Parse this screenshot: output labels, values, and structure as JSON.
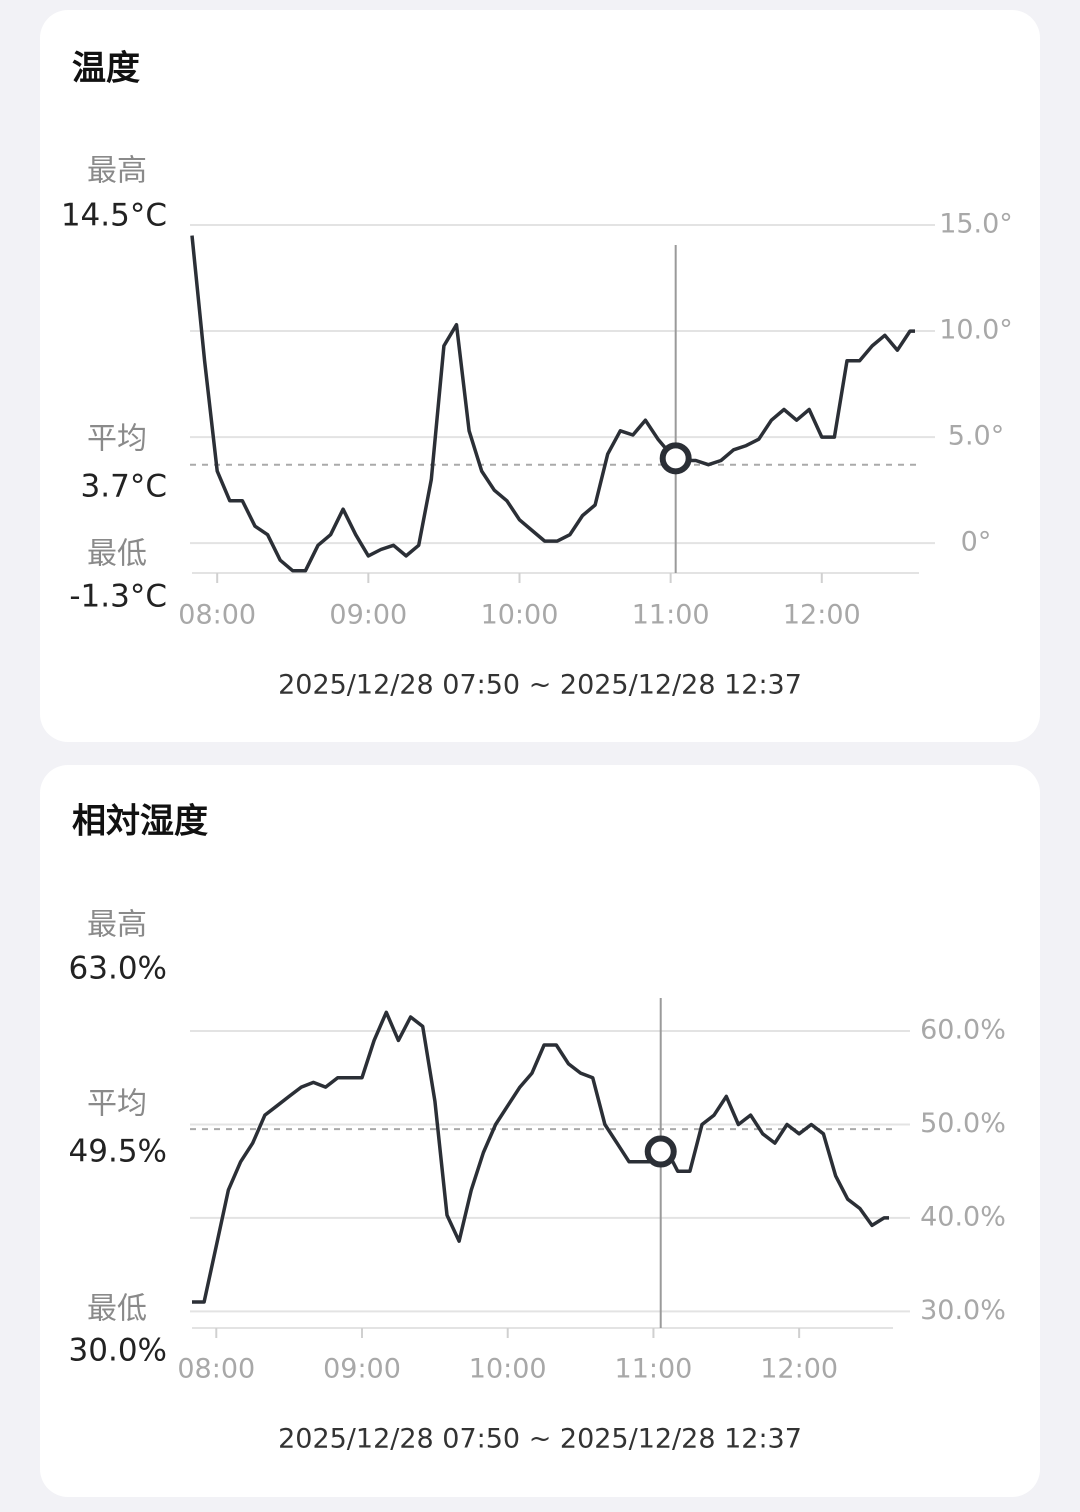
{
  "chart_data": [
    {
      "type": "line",
      "title": "温度",
      "stats": [
        {
          "label": "最高",
          "value": "14.5°C"
        },
        {
          "label": "平均",
          "value": "3.7°C"
        },
        {
          "label": "最低",
          "value": "-1.3°C"
        }
      ],
      "average_line": 3.7,
      "x": [
        "07:50",
        "07:55",
        "08:00",
        "08:05",
        "08:10",
        "08:15",
        "08:20",
        "08:25",
        "08:30",
        "08:35",
        "08:40",
        "08:45",
        "08:50",
        "08:55",
        "09:00",
        "09:05",
        "09:10",
        "09:15",
        "09:20",
        "09:25",
        "09:30",
        "09:35",
        "09:40",
        "09:45",
        "09:50",
        "09:55",
        "10:00",
        "10:05",
        "10:10",
        "10:15",
        "10:20",
        "10:25",
        "10:30",
        "10:35",
        "10:40",
        "10:45",
        "10:50",
        "10:55",
        "11:00",
        "11:05",
        "11:10",
        "11:15",
        "11:20",
        "11:25",
        "11:30",
        "11:35",
        "11:40",
        "11:45",
        "11:50",
        "11:55",
        "12:00",
        "12:05",
        "12:10",
        "12:15",
        "12:20",
        "12:25",
        "12:30",
        "12:35",
        "12:37"
      ],
      "series": [
        {
          "color": "#2b2f36",
          "values": [
            14.5,
            8.6,
            3.4,
            2.0,
            2.0,
            0.8,
            0.4,
            -0.8,
            -1.3,
            -1.3,
            -0.1,
            0.4,
            1.6,
            0.4,
            -0.6,
            -0.3,
            -0.1,
            -0.6,
            -0.1,
            3.0,
            9.3,
            10.3,
            5.3,
            3.4,
            2.5,
            2.0,
            1.1,
            0.6,
            0.1,
            0.1,
            0.4,
            1.3,
            1.8,
            4.2,
            5.3,
            5.1,
            5.8,
            4.9,
            4.2,
            3.9,
            3.9,
            3.7,
            3.9,
            4.4,
            4.6,
            4.9,
            5.8,
            6.3,
            5.8,
            6.3,
            5.0,
            5.0,
            8.6,
            8.6,
            9.3,
            9.8,
            9.1,
            10.0,
            10.0
          ]
        }
      ],
      "xlim": [
        "07:50",
        "12:37"
      ],
      "xticks": [
        "08:00",
        "09:00",
        "10:00",
        "11:00",
        "12:00"
      ],
      "ylim": [
        -1.5,
        15
      ],
      "yticks": [
        {
          "value": 0,
          "label": "0°"
        },
        {
          "value": 5,
          "label": "5.0°"
        },
        {
          "value": 10,
          "label": "10.0°"
        },
        {
          "value": 15,
          "label": "15.0°"
        }
      ],
      "grid": true,
      "cursor": {
        "x": "11:02",
        "value": 4.0
      },
      "range_label": "2025/12/28 07:50 ~ 2025/12/28 12:37"
    },
    {
      "type": "line",
      "title": "相対湿度",
      "stats": [
        {
          "label": "最高",
          "value": "63.0%"
        },
        {
          "label": "平均",
          "value": "49.5%"
        },
        {
          "label": "最低",
          "value": "30.0%"
        }
      ],
      "average_line": 49.5,
      "x": [
        "07:50",
        "07:55",
        "08:00",
        "08:05",
        "08:10",
        "08:15",
        "08:20",
        "08:25",
        "08:30",
        "08:35",
        "08:40",
        "08:45",
        "08:50",
        "08:55",
        "09:00",
        "09:05",
        "09:10",
        "09:15",
        "09:20",
        "09:25",
        "09:30",
        "09:35",
        "09:40",
        "09:45",
        "09:50",
        "09:55",
        "10:00",
        "10:05",
        "10:10",
        "10:15",
        "10:20",
        "10:25",
        "10:30",
        "10:35",
        "10:40",
        "10:45",
        "10:50",
        "10:55",
        "11:00",
        "11:05",
        "11:10",
        "11:15",
        "11:20",
        "11:25",
        "11:30",
        "11:35",
        "11:40",
        "11:45",
        "11:50",
        "11:55",
        "12:00",
        "12:05",
        "12:10",
        "12:15",
        "12:20",
        "12:25",
        "12:30",
        "12:35",
        "12:37"
      ],
      "series": [
        {
          "color": "#2b2f36",
          "values": [
            31,
            31,
            37,
            43,
            46,
            48,
            51,
            52,
            53,
            54,
            54.5,
            54,
            55,
            55,
            55,
            59,
            62,
            59,
            61.5,
            60.5,
            52.5,
            40.3,
            37.5,
            43,
            47,
            50,
            52,
            54,
            55.5,
            58.5,
            58.5,
            56.5,
            55.5,
            55,
            50,
            48,
            46,
            46,
            46,
            47.5,
            45,
            45,
            50,
            51,
            53,
            50,
            51,
            49,
            48,
            50,
            49,
            50,
            49,
            44.5,
            42,
            41,
            39.2,
            40,
            40
          ]
        }
      ],
      "xlim": [
        "07:50",
        "12:37"
      ],
      "xticks": [
        "08:00",
        "09:00",
        "10:00",
        "11:00",
        "12:00"
      ],
      "ylim": [
        28,
        63
      ],
      "yticks": [
        {
          "value": 30,
          "label": "30.0%"
        },
        {
          "value": 40,
          "label": "40.0%"
        },
        {
          "value": 50,
          "label": "50.0%"
        },
        {
          "value": 60,
          "label": "60.0%"
        }
      ],
      "grid": true,
      "cursor": {
        "x": "11:03",
        "value": 47.1
      },
      "range_label": "2025/12/28 07:50 ~ 2025/12/28 12:37"
    }
  ]
}
